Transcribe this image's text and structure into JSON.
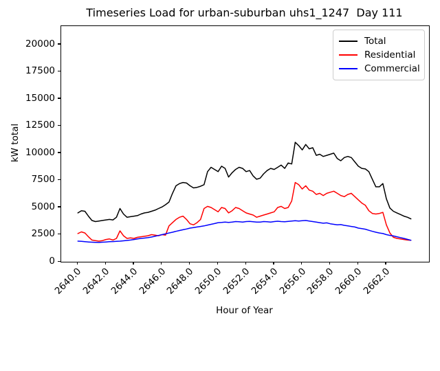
{
  "chart_data": {
    "type": "line",
    "title": "Timeseries Load for urban-suburban uhs1_1247  Day 111",
    "xlabel": "Hour of Year",
    "ylabel": "kW total",
    "grid": false,
    "legend_position": "upper right",
    "xlim": [
      2638.81,
      2665.04
    ],
    "ylim": [
      0,
      21700
    ],
    "x_tick_values": [
      2640,
      2642,
      2644,
      2646,
      2648,
      2650,
      2652,
      2654,
      2656,
      2658,
      2660,
      2662
    ],
    "x_tick_labels": [
      "2640.0",
      "2642.0",
      "2644.0",
      "2646.0",
      "2648.0",
      "2650.0",
      "2652.0",
      "2654.0",
      "2656.0",
      "2658.0",
      "2660.0",
      "2662.0"
    ],
    "y_tick_values": [
      0,
      2500,
      5000,
      7500,
      10000,
      12500,
      15000,
      17500,
      20000
    ],
    "y_tick_labels": [
      "0",
      "2500",
      "5000",
      "7500",
      "10000",
      "12500",
      "15000",
      "17500",
      "20000"
    ],
    "x_start": 2640.0,
    "x_step": 0.25,
    "series": [
      {
        "name": "Total",
        "color": "#000000",
        "values": [
          4500,
          4700,
          4650,
          4200,
          3800,
          3700,
          3750,
          3800,
          3850,
          3900,
          3850,
          4100,
          4900,
          4400,
          4100,
          4150,
          4200,
          4250,
          4400,
          4500,
          4550,
          4650,
          4750,
          4900,
          5050,
          5250,
          5500,
          6300,
          7000,
          7200,
          7300,
          7250,
          7000,
          6800,
          6850,
          6950,
          7100,
          8300,
          8700,
          8500,
          8300,
          8800,
          8600,
          7800,
          8200,
          8500,
          8700,
          8600,
          8300,
          8400,
          7900,
          7600,
          7700,
          8100,
          8400,
          8600,
          8500,
          8700,
          8900,
          8600,
          9100,
          9000,
          11000,
          10700,
          10300,
          10800,
          10400,
          10500,
          9800,
          9900,
          9700,
          9800,
          9900,
          10000,
          9500,
          9300,
          9600,
          9700,
          9600,
          9200,
          8800,
          8600,
          8550,
          8300,
          7600,
          6900,
          6900,
          7200,
          5800,
          4950,
          4650,
          4500,
          4350,
          4200,
          4100,
          3950
        ]
      },
      {
        "name": "Residential",
        "color": "#ff0000",
        "values": [
          2600,
          2750,
          2650,
          2300,
          2000,
          1950,
          1900,
          1950,
          2050,
          2100,
          2000,
          2150,
          2850,
          2400,
          2150,
          2200,
          2150,
          2250,
          2300,
          2350,
          2400,
          2500,
          2450,
          2400,
          2500,
          2450,
          3300,
          3600,
          3900,
          4100,
          4200,
          3900,
          3500,
          3400,
          3600,
          3900,
          4900,
          5100,
          5000,
          4800,
          4600,
          5000,
          4900,
          4500,
          4700,
          5000,
          4900,
          4700,
          4500,
          4400,
          4300,
          4100,
          4200,
          4300,
          4400,
          4500,
          4600,
          5000,
          5100,
          4900,
          5000,
          5600,
          7300,
          7100,
          6700,
          7000,
          6600,
          6500,
          6200,
          6300,
          6100,
          6300,
          6400,
          6500,
          6300,
          6100,
          6000,
          6200,
          6300,
          6000,
          5700,
          5400,
          5200,
          4700,
          4450,
          4400,
          4450,
          4550,
          3400,
          2650,
          2250,
          2150,
          2100,
          2050,
          2000,
          1980
        ]
      },
      {
        "name": "Commercial",
        "color": "#0000ff",
        "values": [
          1900,
          1880,
          1850,
          1820,
          1800,
          1790,
          1780,
          1800,
          1820,
          1850,
          1860,
          1880,
          1900,
          1930,
          1960,
          2000,
          2050,
          2100,
          2150,
          2180,
          2220,
          2280,
          2350,
          2420,
          2500,
          2570,
          2650,
          2720,
          2800,
          2880,
          2950,
          3020,
          3100,
          3150,
          3200,
          3250,
          3300,
          3380,
          3450,
          3520,
          3600,
          3620,
          3650,
          3620,
          3650,
          3700,
          3680,
          3650,
          3700,
          3720,
          3680,
          3650,
          3650,
          3700,
          3680,
          3650,
          3700,
          3730,
          3700,
          3680,
          3720,
          3750,
          3780,
          3750,
          3780,
          3800,
          3750,
          3700,
          3650,
          3600,
          3550,
          3580,
          3500,
          3450,
          3400,
          3420,
          3350,
          3300,
          3250,
          3200,
          3100,
          3050,
          3000,
          2900,
          2800,
          2720,
          2650,
          2600,
          2500,
          2430,
          2380,
          2300,
          2230,
          2150,
          2060,
          1980
        ]
      }
    ]
  }
}
